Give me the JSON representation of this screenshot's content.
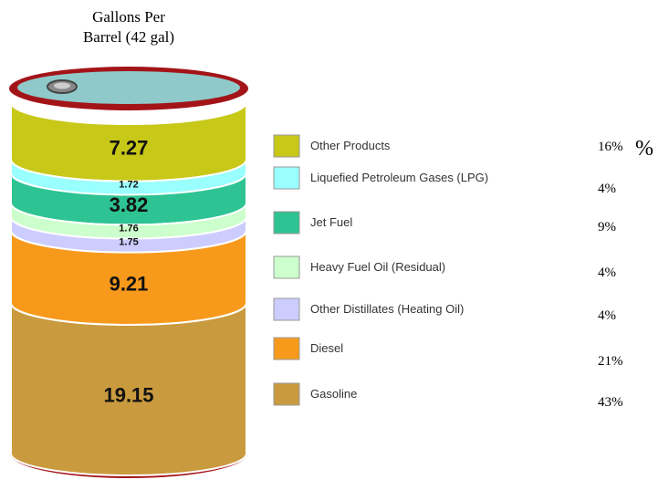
{
  "chart_data": {
    "type": "barrel",
    "title": "Gallons Per Barrel (42 gal)",
    "series": [
      {
        "name": "Other Products",
        "color": "#c8c818",
        "values": [
          7.27
        ],
        "share_label": "16%"
      },
      {
        "name": "Liquefied Petroleum Gases (LPG)",
        "color": "#99ffff",
        "values": [
          1.72
        ],
        "share_label": "4%"
      },
      {
        "name": "Jet Fuel",
        "color": "#2ec392",
        "values": [
          3.82
        ],
        "share_label": "9%"
      },
      {
        "name": "Heavy Fuel Oil (Residual)",
        "color": "#ccffcc",
        "values": [
          1.76
        ],
        "share_label": "4%"
      },
      {
        "name": "Other Distillates (Heating Oil)",
        "color": "#ccccff",
        "values": [
          1.75
        ],
        "share_label": "4%"
      },
      {
        "name": "Diesel",
        "color": "#f79a1c",
        "values": [
          9.21
        ],
        "share_label": "21%"
      },
      {
        "name": "Gasoline",
        "color": "#c99a3e",
        "values": [
          19.15
        ],
        "share_label": "43%"
      }
    ],
    "annotation": "%"
  }
}
